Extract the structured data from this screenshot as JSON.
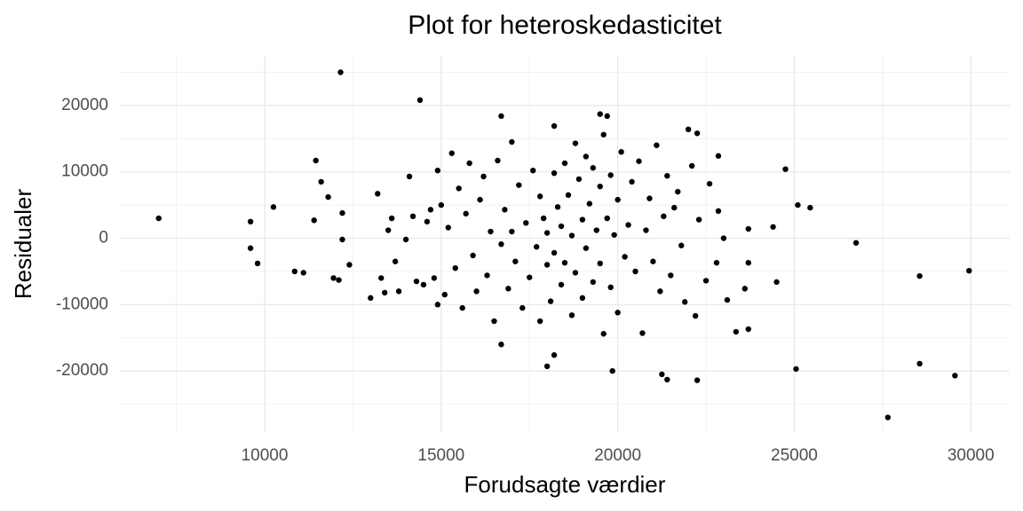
{
  "chart_data": {
    "type": "scatter",
    "title": "Plot for heteroskedasticitet",
    "x_label": "Forudsagte værdier",
    "y_label": "Residualer",
    "color": "#000000",
    "grid": true,
    "xlim": [
      5900,
      31100
    ],
    "ylim": [
      -29200,
      27600
    ],
    "xticks": [
      10000,
      15000,
      20000,
      25000,
      30000
    ],
    "yticks": [
      -20000,
      -10000,
      0,
      10000,
      20000
    ],
    "x_minor_ticks": [
      7500,
      12500,
      17500,
      22500,
      27500
    ],
    "y_minor_ticks": [
      -25000,
      -15000,
      -5000,
      5000,
      15000,
      25000
    ],
    "x": [
      7000,
      9600,
      9600,
      9800,
      10250,
      10850,
      11100,
      11450,
      11400,
      11600,
      11800,
      12150,
      12200,
      12200,
      12100,
      11950,
      12400,
      14400,
      16700,
      16700,
      18000,
      18200,
      18200,
      19500,
      19700,
      19850,
      21250,
      21400,
      22250,
      22000,
      22250,
      22850,
      23350,
      23700,
      24750,
      25100,
      25450,
      24500,
      25050,
      26750,
      27650,
      28550,
      28550,
      29550,
      29950,
      24400,
      23700,
      23700,
      23000,
      22800,
      22850,
      23600,
      23100,
      22200,
      21600,
      13000,
      13200,
      13300,
      13400,
      13500,
      13600,
      13700,
      13800,
      14000,
      14100,
      14200,
      14300,
      14500,
      14600,
      14800,
      14900,
      14700,
      14900,
      15000,
      15100,
      15200,
      15300,
      15400,
      15500,
      15600,
      15700,
      15800,
      15900,
      16000,
      16100,
      16200,
      16300,
      16400,
      16500,
      16600,
      16700,
      16800,
      16900,
      17000,
      17000,
      17100,
      17200,
      17300,
      17400,
      17500,
      17600,
      17700,
      17800,
      17800,
      17900,
      18000,
      18000,
      18100,
      18200,
      18200,
      18300,
      18400,
      18400,
      18500,
      18500,
      18600,
      18700,
      18700,
      18800,
      18800,
      18900,
      19000,
      19000,
      19100,
      19100,
      19200,
      19300,
      19300,
      19400,
      19500,
      19500,
      19600,
      19600,
      19700,
      19800,
      19800,
      19900,
      20000,
      20000,
      20100,
      20200,
      20300,
      20400,
      20500,
      20600,
      20700,
      20800,
      20900,
      21000,
      21100,
      21200,
      21300,
      21400,
      21500,
      21700,
      21800,
      21900,
      22100,
      22300,
      22500,
      22600
    ],
    "values": [
      3000,
      2500,
      -1500,
      -3800,
      4700,
      -5000,
      -5200,
      11700,
      2700,
      8500,
      6200,
      25000,
      3800,
      -200,
      -6300,
      -6000,
      -4000,
      20800,
      18400,
      -16000,
      -19300,
      -17600,
      16900,
      18700,
      18400,
      -20000,
      -20500,
      -21300,
      -21400,
      16400,
      15800,
      12400,
      -14100,
      -13700,
      10400,
      5000,
      4600,
      -6600,
      -19700,
      -700,
      -27000,
      -5700,
      -18900,
      -20700,
      -4900,
      1700,
      1400,
      -3700,
      0,
      -3700,
      4100,
      -7600,
      -9300,
      -11700,
      4600,
      -9000,
      6700,
      -6000,
      -8200,
      1200,
      3000,
      -3500,
      -8000,
      -200,
      9300,
      3300,
      -6500,
      -7000,
      2500,
      -6000,
      -10000,
      4300,
      10200,
      5000,
      -8500,
      1600,
      12800,
      -4500,
      7500,
      -10500,
      3700,
      11300,
      -2600,
      -8000,
      5800,
      9300,
      -5600,
      1000,
      -12500,
      11700,
      -900,
      4300,
      -7600,
      14500,
      1000,
      -3500,
      8000,
      -10500,
      2300,
      -5900,
      10200,
      -1300,
      -12500,
      6300,
      3000,
      -4000,
      800,
      -9500,
      9800,
      -2200,
      4700,
      -7000,
      1800,
      11300,
      -3700,
      6500,
      -11600,
      400,
      14300,
      -5200,
      8900,
      2800,
      -9000,
      12300,
      -1500,
      5200,
      -6600,
      10600,
      1200,
      -3800,
      7800,
      15600,
      -14400,
      3000,
      -7400,
      9500,
      500,
      -11200,
      5800,
      13000,
      -2800,
      2000,
      8500,
      -5000,
      11600,
      -14300,
      1200,
      6000,
      -3500,
      14000,
      -8000,
      3300,
      9400,
      -5600,
      7000,
      -1100,
      -9600,
      10900,
      2800,
      -6400,
      8200
    ]
  }
}
